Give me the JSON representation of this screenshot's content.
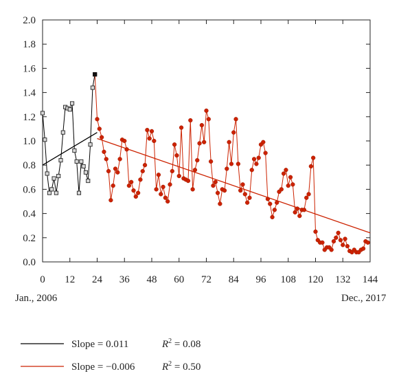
{
  "chart_data": {
    "type": "line",
    "xlim": [
      0,
      144
    ],
    "ylim": [
      0,
      2.0
    ],
    "x_ticks": [
      "0",
      "12",
      "24",
      "36",
      "48",
      "60",
      "72",
      "84",
      "96",
      "108",
      "120",
      "132",
      "144"
    ],
    "y_ticks": [
      "0.0",
      "0.2",
      "0.4",
      "0.6",
      "0.8",
      "1.0",
      "1.2",
      "1.4",
      "1.6",
      "1.8",
      "2.0"
    ],
    "x_start_label": "Jan., 2006",
    "x_end_label": "Dec., 2017",
    "grid": false,
    "series": [
      {
        "color": "#000000",
        "marker": "square-open",
        "x": [
          0,
          1,
          2,
          3,
          4,
          5,
          6,
          7,
          8,
          9,
          10,
          11,
          12,
          13,
          14,
          15,
          16,
          17,
          18,
          19,
          20,
          21,
          22,
          23
        ],
        "y": [
          1.23,
          1.01,
          0.73,
          0.57,
          0.6,
          0.69,
          0.57,
          0.71,
          0.84,
          1.07,
          1.28,
          1.27,
          1.26,
          1.31,
          0.92,
          0.83,
          0.57,
          0.83,
          0.79,
          0.74,
          0.67,
          0.97,
          1.44,
          1.55
        ]
      },
      {
        "color": "#cc2200",
        "marker": "circle-filled",
        "x": [
          23,
          24,
          25,
          26,
          27,
          28,
          29,
          30,
          31,
          32,
          33,
          34,
          35,
          36,
          37,
          38,
          39,
          40,
          41,
          42,
          43,
          44,
          45,
          46,
          47,
          48,
          49,
          50,
          51,
          52,
          53,
          54,
          55,
          56,
          57,
          58,
          59,
          60,
          61,
          62,
          63,
          64,
          65,
          66,
          67,
          68,
          69,
          70,
          71,
          72,
          73,
          74,
          75,
          76,
          77,
          78,
          79,
          80,
          81,
          82,
          83,
          84,
          85,
          86,
          87,
          88,
          89,
          90,
          91,
          92,
          93,
          94,
          95,
          96,
          97,
          98,
          99,
          100,
          101,
          102,
          103,
          104,
          105,
          106,
          107,
          108,
          109,
          110,
          111,
          112,
          113,
          114,
          115,
          116,
          117,
          118,
          119,
          120,
          121,
          122,
          123,
          124,
          125,
          126,
          127,
          128,
          129,
          130,
          131,
          132,
          133,
          134,
          135,
          136,
          137,
          138,
          139,
          140,
          141,
          142,
          143
        ],
        "y": [
          1.55,
          1.18,
          1.1,
          1.03,
          0.91,
          0.85,
          0.75,
          0.51,
          0.63,
          0.77,
          0.74,
          0.85,
          1.01,
          1.0,
          0.93,
          0.63,
          0.66,
          0.59,
          0.54,
          0.57,
          0.68,
          0.75,
          0.8,
          1.09,
          1.02,
          1.08,
          1.0,
          0.6,
          0.72,
          0.56,
          0.62,
          0.53,
          0.5,
          0.64,
          0.75,
          0.97,
          0.88,
          0.71,
          1.11,
          0.69,
          0.68,
          0.67,
          1.17,
          0.6,
          0.76,
          0.84,
          0.98,
          1.13,
          0.99,
          1.25,
          1.18,
          0.83,
          0.63,
          0.66,
          0.57,
          0.48,
          0.6,
          0.59,
          0.77,
          0.99,
          0.81,
          1.07,
          1.18,
          0.81,
          0.59,
          0.64,
          0.56,
          0.49,
          0.53,
          0.76,
          0.85,
          0.81,
          0.86,
          0.97,
          0.99,
          0.9,
          0.52,
          0.48,
          0.37,
          0.43,
          0.49,
          0.58,
          0.6,
          0.73,
          0.76,
          0.63,
          0.7,
          0.64,
          0.41,
          0.44,
          0.38,
          0.43,
          0.43,
          0.53,
          0.56,
          0.79,
          0.86,
          0.25,
          0.18,
          0.16,
          0.16,
          0.1,
          0.12,
          0.12,
          0.1,
          0.17,
          0.2,
          0.24,
          0.18,
          0.14,
          0.19,
          0.13,
          0.09,
          0.08,
          0.1,
          0.08,
          0.08,
          0.1,
          0.11,
          0.17,
          0.16
        ]
      }
    ],
    "trend_lines": [
      {
        "color": "#000000",
        "x": [
          0,
          24
        ],
        "y": [
          0.8,
          1.07
        ]
      },
      {
        "color": "#cc2200",
        "x": [
          24,
          144
        ],
        "y": [
          1.02,
          0.24
        ]
      }
    ],
    "legend": {
      "position": "bottom-left",
      "items": [
        {
          "color": "#000000",
          "slope_text": "Slope = 0.011",
          "r2_text": " = 0.08"
        },
        {
          "color": "#cc2200",
          "slope_text": "Slope = −0.006",
          "r2_text": " = 0.50"
        }
      ],
      "r2_symbol": "R",
      "r2_superscript": "2"
    }
  }
}
